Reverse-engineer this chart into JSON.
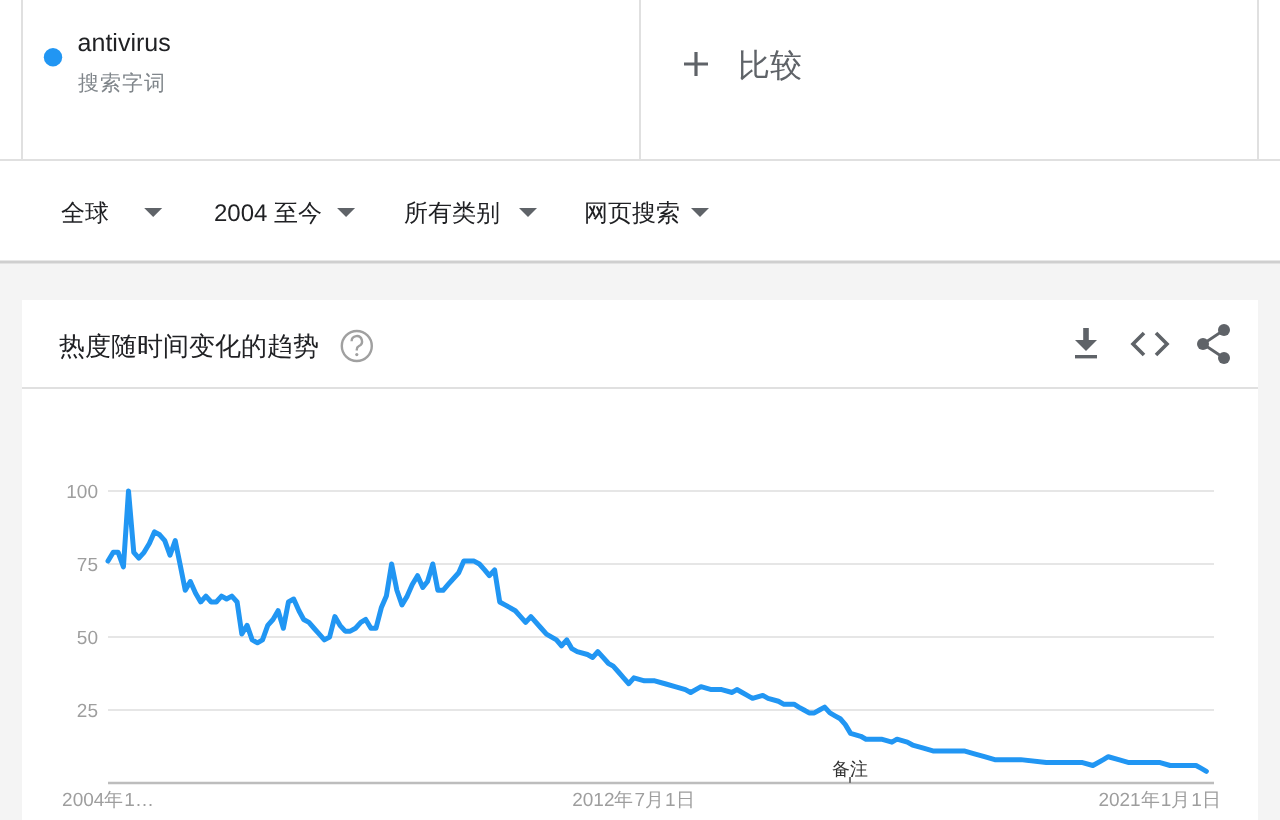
{
  "chart_data": {
    "type": "line",
    "title": "热度随时间变化的趋势",
    "series": [
      {
        "name": "antivirus",
        "color": "#2196f3",
        "x": [
          "2004-01",
          "2004-02",
          "2004-03",
          "2004-04",
          "2004-05",
          "2004-06",
          "2004-07",
          "2004-08",
          "2004-09",
          "2004-10",
          "2004-11",
          "2004-12",
          "2005-01",
          "2005-02",
          "2005-03",
          "2005-04",
          "2005-05",
          "2005-06",
          "2005-07",
          "2005-08",
          "2005-09",
          "2005-10",
          "2005-11",
          "2005-12",
          "2006-01",
          "2006-02",
          "2006-03",
          "2006-04",
          "2006-05",
          "2006-06",
          "2006-07",
          "2006-08",
          "2006-09",
          "2006-10",
          "2006-11",
          "2006-12",
          "2007-01",
          "2007-02",
          "2007-03",
          "2007-04",
          "2007-05",
          "2007-06",
          "2007-07",
          "2007-08",
          "2007-09",
          "2007-10",
          "2007-11",
          "2007-12",
          "2008-01",
          "2008-02",
          "2008-03",
          "2008-04",
          "2008-05",
          "2008-06",
          "2008-07",
          "2008-08",
          "2008-09",
          "2008-10",
          "2008-11",
          "2008-12",
          "2009-01",
          "2009-02",
          "2009-03",
          "2009-04",
          "2009-05",
          "2009-06",
          "2009-07",
          "2009-09",
          "2009-10",
          "2009-12",
          "2010-01",
          "2010-02",
          "2010-03",
          "2010-04",
          "2010-05",
          "2010-06",
          "2010-08",
          "2010-09",
          "2010-10",
          "2010-11",
          "2011-01",
          "2011-02",
          "2011-04",
          "2011-05",
          "2011-06",
          "2011-07",
          "2011-08",
          "2011-10",
          "2011-11",
          "2011-12",
          "2012-01",
          "2012-02",
          "2012-03",
          "2012-04",
          "2012-05",
          "2012-06",
          "2012-07",
          "2012-09",
          "2012-11",
          "2013-01",
          "2013-03",
          "2013-05",
          "2013-06",
          "2013-07",
          "2013-08",
          "2013-10",
          "2013-12",
          "2014-02",
          "2014-03",
          "2014-04",
          "2014-05",
          "2014-06",
          "2014-08",
          "2014-09",
          "2014-11",
          "2014-12",
          "2015-01",
          "2015-02",
          "2015-03",
          "2015-04",
          "2015-05",
          "2015-06",
          "2015-07",
          "2015-08",
          "2015-09",
          "2015-10",
          "2015-11",
          "2015-12",
          "2016-01",
          "2016-03",
          "2016-04",
          "2016-07",
          "2016-09",
          "2016-10",
          "2016-12",
          "2017-01",
          "2017-03",
          "2017-05",
          "2017-07",
          "2017-11",
          "2018-01",
          "2018-03",
          "2018-05",
          "2018-06",
          "2018-08",
          "2018-10",
          "2019-03",
          "2019-05",
          "2019-06",
          "2019-10",
          "2019-12",
          "2020-02",
          "2020-03",
          "2020-05",
          "2020-07",
          "2020-09",
          "2021-01",
          "2021-03",
          "2021-04",
          "2021-08",
          "2021-09",
          "2021-10"
        ],
        "values": [
          76,
          79,
          79,
          74,
          100,
          79,
          77,
          79,
          82,
          86,
          85,
          83,
          78,
          83,
          75,
          66,
          69,
          65,
          62,
          64,
          62,
          62,
          64,
          63,
          64,
          62,
          51,
          54,
          49,
          48,
          49,
          54,
          56,
          59,
          53,
          62,
          63,
          59,
          56,
          55,
          53,
          51,
          49,
          50,
          57,
          54,
          52,
          52,
          53,
          55,
          56,
          53,
          53,
          60,
          64,
          75,
          66,
          61,
          64,
          68,
          71,
          67,
          69,
          75,
          66,
          66,
          68,
          72,
          76,
          76,
          75,
          73,
          71,
          73,
          62,
          61,
          59,
          57,
          55,
          57,
          53,
          51,
          49,
          47,
          49,
          46,
          45,
          44,
          43,
          45,
          43,
          41,
          40,
          38,
          36,
          34,
          36,
          35,
          35,
          34,
          33,
          32,
          31,
          32,
          33,
          32,
          32,
          31,
          32,
          31,
          30,
          29,
          30,
          29,
          28,
          27,
          27,
          27,
          26,
          25,
          24,
          24,
          25,
          26,
          24,
          23,
          22,
          20,
          17,
          16,
          15,
          15,
          14,
          15,
          14,
          13,
          12,
          11,
          11,
          11,
          10,
          9,
          8,
          8,
          8,
          8,
          7,
          7,
          7,
          7,
          6,
          8,
          9,
          8,
          7,
          7,
          7,
          6,
          6,
          6,
          5,
          4
        ]
      }
    ],
    "xlim": [
      "2004-01-01",
      "2021-11-15"
    ],
    "xticks": [
      {
        "value": "2004-01-01",
        "label": "2004年1…"
      },
      {
        "value": "2012-07-01",
        "label": "2012年7月1日"
      },
      {
        "value": "2021-01-01",
        "label": "2021年1月1日"
      }
    ],
    "ylim": [
      0,
      100
    ],
    "yticks": [
      25,
      50,
      75,
      100
    ],
    "grid": "y",
    "legend": "top left",
    "annotations": [
      "搜索字词",
      "比较",
      "全球",
      "2004 至今",
      "所有类别",
      "网页搜索",
      "备注"
    ]
  }
}
